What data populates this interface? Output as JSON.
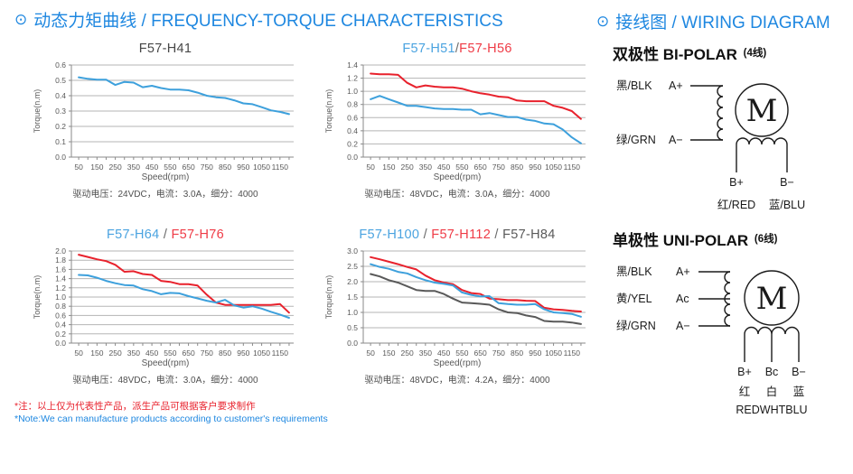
{
  "header": {
    "bullet": "⊙",
    "left_title": "动态力矩曲线 / FREQUENCY-TORQUE CHARACTERISTICS",
    "right_title": "接线图 / WIRING DIAGRAM"
  },
  "colors": {
    "heading_blue": "#1e87e0",
    "line_blue": "#3da0dc",
    "line_red": "#e8212c",
    "line_gray": "#595959",
    "title_blue": "#4aa3e0",
    "title_red": "#ef3b46",
    "grid": "#b5b5b5",
    "axis": "#8a8a8a",
    "note_red": "#e8212c",
    "note_blue": "#1e87e0"
  },
  "chart_data": [
    {
      "type": "line",
      "title_segments": [
        {
          "text": "F57-H41",
          "color": "#474747"
        }
      ],
      "xlabel": "Speed(rpm)",
      "ylabel": "Torque(n.m)",
      "caption": "驱动电压：24VDC，电流：3.0A，细分：4000",
      "ylim": [
        0,
        0.6
      ],
      "ytick_step": 0.1,
      "xlim": [
        50,
        1200
      ],
      "x_tick_labels": [
        50,
        150,
        250,
        350,
        450,
        550,
        650,
        750,
        850,
        950,
        1050,
        1150
      ],
      "x": [
        50,
        100,
        150,
        200,
        250,
        300,
        350,
        400,
        450,
        500,
        550,
        600,
        650,
        700,
        750,
        800,
        850,
        900,
        950,
        1000,
        1050,
        1100,
        1150,
        1200
      ],
      "series": [
        {
          "name": "F57-H41",
          "color": "#3da0dc",
          "values": [
            0.52,
            0.51,
            0.505,
            0.505,
            0.47,
            0.49,
            0.485,
            0.455,
            0.465,
            0.45,
            0.44,
            0.44,
            0.435,
            0.42,
            0.4,
            0.39,
            0.385,
            0.37,
            0.35,
            0.345,
            0.325,
            0.305,
            0.295,
            0.28
          ]
        }
      ]
    },
    {
      "type": "line",
      "title_segments": [
        {
          "text": "F57-H51",
          "color": "#4aa3e0"
        },
        {
          "text": "/",
          "color": "#6b6b6b"
        },
        {
          "text": "F57-H56",
          "color": "#ef3b46"
        }
      ],
      "xlabel": "Speed(rpm)",
      "ylabel": "Torque(n.m)",
      "caption": "驱动电压：48VDC，电流：3.0A，细分：4000",
      "ylim": [
        0,
        1.4
      ],
      "ytick_step": 0.2,
      "xlim": [
        50,
        1200
      ],
      "x_tick_labels": [
        50,
        150,
        250,
        350,
        450,
        550,
        650,
        750,
        850,
        950,
        1050,
        1150
      ],
      "x": [
        50,
        100,
        150,
        200,
        250,
        300,
        350,
        400,
        450,
        500,
        550,
        600,
        650,
        700,
        750,
        800,
        850,
        900,
        950,
        1000,
        1050,
        1100,
        1150,
        1200
      ],
      "series": [
        {
          "name": "F57-H56",
          "color": "#e8212c",
          "values": [
            1.27,
            1.26,
            1.26,
            1.25,
            1.13,
            1.06,
            1.09,
            1.07,
            1.06,
            1.06,
            1.04,
            1.0,
            0.97,
            0.95,
            0.92,
            0.91,
            0.86,
            0.85,
            0.85,
            0.85,
            0.78,
            0.75,
            0.7,
            0.58
          ]
        },
        {
          "name": "F57-H51",
          "color": "#3da0dc",
          "values": [
            0.88,
            0.93,
            0.88,
            0.83,
            0.78,
            0.78,
            0.76,
            0.74,
            0.73,
            0.73,
            0.72,
            0.72,
            0.65,
            0.67,
            0.64,
            0.61,
            0.61,
            0.57,
            0.55,
            0.51,
            0.5,
            0.42,
            0.3,
            0.21
          ]
        }
      ]
    },
    {
      "type": "line",
      "title_segments": [
        {
          "text": "F57-H64",
          "color": "#4aa3e0"
        },
        {
          "text": " / ",
          "color": "#6b6b6b"
        },
        {
          "text": "F57-H76",
          "color": "#ef3b46"
        }
      ],
      "xlabel": "Speed(rpm)",
      "ylabel": "Torque(n.m)",
      "caption": "驱动电压：48VDC，电流：3.0A，细分：4000",
      "ylim": [
        0,
        2.0
      ],
      "ytick_step": 0.2,
      "xlim": [
        50,
        1200
      ],
      "x_tick_labels": [
        50,
        150,
        250,
        350,
        450,
        550,
        650,
        750,
        850,
        950,
        1050,
        1150
      ],
      "x": [
        50,
        100,
        150,
        200,
        250,
        300,
        350,
        400,
        450,
        500,
        550,
        600,
        650,
        700,
        750,
        800,
        850,
        900,
        950,
        1000,
        1050,
        1100,
        1150,
        1200
      ],
      "series": [
        {
          "name": "F57-H76",
          "color": "#e8212c",
          "values": [
            1.92,
            1.87,
            1.82,
            1.78,
            1.7,
            1.55,
            1.56,
            1.5,
            1.48,
            1.35,
            1.33,
            1.28,
            1.28,
            1.25,
            1.05,
            0.88,
            0.83,
            0.83,
            0.83,
            0.83,
            0.83,
            0.83,
            0.85,
            0.66
          ]
        },
        {
          "name": "F57-H64",
          "color": "#3da0dc",
          "values": [
            1.48,
            1.47,
            1.42,
            1.35,
            1.3,
            1.26,
            1.25,
            1.17,
            1.13,
            1.06,
            1.09,
            1.08,
            1.02,
            0.97,
            0.92,
            0.88,
            0.94,
            0.82,
            0.77,
            0.8,
            0.75,
            0.68,
            0.62,
            0.55
          ]
        }
      ]
    },
    {
      "type": "line",
      "title_segments": [
        {
          "text": "F57-H100",
          "color": "#4aa3e0"
        },
        {
          "text": " / ",
          "color": "#6b6b6b"
        },
        {
          "text": "F57-H112",
          "color": "#ef3b46"
        },
        {
          "text": " / ",
          "color": "#6b6b6b"
        },
        {
          "text": "F57-H84",
          "color": "#595959"
        }
      ],
      "xlabel": "Speed(rpm)",
      "ylabel": "Torque(n.m)",
      "caption": "驱动电压：48VDC，电流：4.2A，细分：4000",
      "ylim": [
        0,
        3.0
      ],
      "ytick_step": 0.5,
      "xlim": [
        50,
        1200
      ],
      "x_tick_labels": [
        50,
        150,
        250,
        350,
        450,
        550,
        650,
        750,
        850,
        950,
        1050,
        1150
      ],
      "x": [
        50,
        100,
        150,
        200,
        250,
        300,
        350,
        400,
        450,
        500,
        550,
        600,
        650,
        700,
        750,
        800,
        850,
        900,
        950,
        1000,
        1050,
        1100,
        1150,
        1200
      ],
      "series": [
        {
          "name": "F57-H112",
          "color": "#e8212c",
          "values": [
            2.8,
            2.73,
            2.65,
            2.57,
            2.48,
            2.4,
            2.2,
            2.05,
            1.97,
            1.92,
            1.73,
            1.63,
            1.6,
            1.45,
            1.43,
            1.4,
            1.4,
            1.38,
            1.37,
            1.15,
            1.1,
            1.08,
            1.05,
            1.03
          ]
        },
        {
          "name": "F57-H100",
          "color": "#3da0dc",
          "values": [
            2.57,
            2.48,
            2.42,
            2.32,
            2.27,
            2.15,
            2.05,
            1.97,
            1.93,
            1.88,
            1.65,
            1.57,
            1.52,
            1.53,
            1.3,
            1.27,
            1.25,
            1.25,
            1.27,
            1.1,
            1.0,
            0.98,
            0.95,
            0.86
          ]
        },
        {
          "name": "F57-H84",
          "color": "#595959",
          "values": [
            2.25,
            2.17,
            2.05,
            1.97,
            1.85,
            1.73,
            1.7,
            1.7,
            1.6,
            1.45,
            1.32,
            1.3,
            1.28,
            1.25,
            1.1,
            1.0,
            0.98,
            0.9,
            0.85,
            0.72,
            0.7,
            0.7,
            0.67,
            0.62
          ]
        }
      ]
    }
  ],
  "wiring": {
    "bipolar": {
      "title_zh": "双极性",
      "title_en": "BI-POLAR",
      "title_note": "(4线)",
      "motor_label": "M",
      "left_terminals": [
        {
          "wire": "黑/BLK",
          "terminal": "A+"
        },
        {
          "wire": "绿/GRN",
          "terminal": "A−"
        }
      ],
      "bottom_terminals": [
        {
          "terminal": "B+",
          "wire": "红/RED"
        },
        {
          "terminal": "B−",
          "wire": "蓝/BLU"
        }
      ]
    },
    "unipolar": {
      "title_zh": "单极性",
      "title_en": "UNI-POLAR",
      "title_note": "(6线)",
      "motor_label": "M",
      "left_terminals": [
        {
          "wire": "黑/BLK",
          "terminal": "A+"
        },
        {
          "wire": "黄/YEL",
          "terminal": "Ac"
        },
        {
          "wire": "绿/GRN",
          "terminal": "A−"
        }
      ],
      "bottom_terminals": [
        "B+",
        "Bc",
        "B−"
      ],
      "bottom_wires_zh": [
        "红",
        "白",
        "蓝"
      ],
      "bottom_wires_en": "REDWHTBLU"
    }
  },
  "notes": {
    "zh": "*注：以上仅为代表性产品，派生产品可根据客户要求制作",
    "en": "*Note:We can manufacture products according to customer's requirements"
  }
}
